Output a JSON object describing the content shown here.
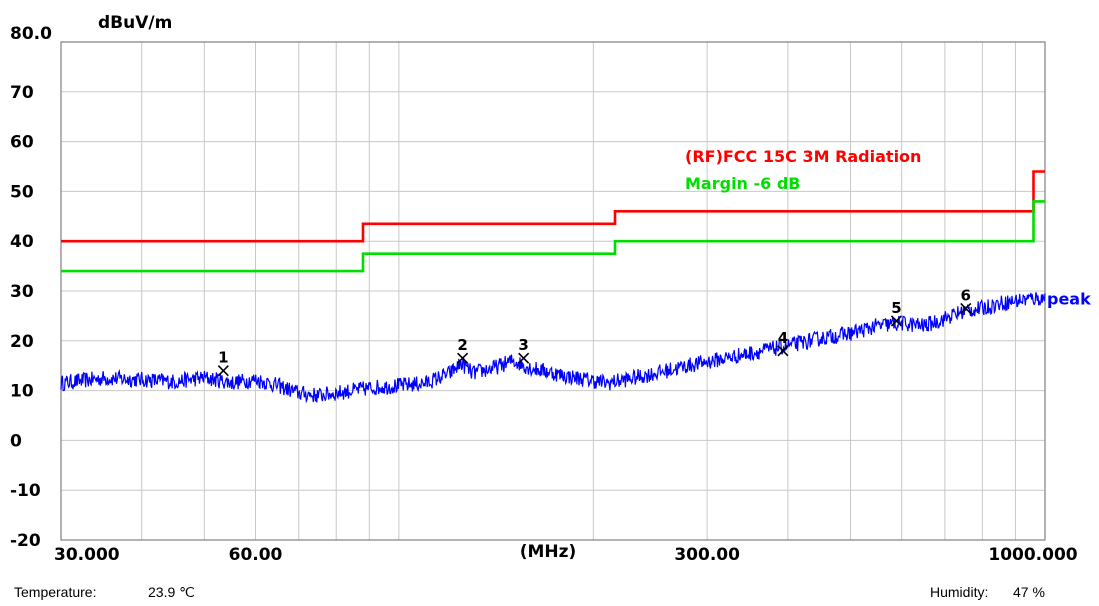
{
  "chart_data": {
    "type": "line",
    "x_scale": "log",
    "x_unit": "(MHz)",
    "y_unit": "dBuV/m",
    "xlim": [
      30,
      1000
    ],
    "ylim": [
      -20,
      80
    ],
    "y_ticks": [
      {
        "value": 80,
        "label": "80.0"
      },
      {
        "value": 70,
        "label": "70"
      },
      {
        "value": 60,
        "label": "60"
      },
      {
        "value": 50,
        "label": "50"
      },
      {
        "value": 40,
        "label": "40"
      },
      {
        "value": 30,
        "label": "30"
      },
      {
        "value": 20,
        "label": "20"
      },
      {
        "value": 10,
        "label": "10"
      },
      {
        "value": 0,
        "label": "0"
      },
      {
        "value": -10,
        "label": "-10"
      },
      {
        "value": -20,
        "label": "-20"
      }
    ],
    "x_tick_labels": [
      {
        "value": 30,
        "label": "30.000"
      },
      {
        "value": 60,
        "label": "60.00"
      },
      {
        "value": 300,
        "label": "300.00"
      },
      {
        "value": 1000,
        "label": "1000.000"
      }
    ],
    "x_grid": [
      40,
      50,
      60,
      70,
      80,
      90,
      100,
      200,
      300,
      400,
      500,
      600,
      700,
      800,
      900
    ],
    "grid": true,
    "series": [
      {
        "name": "(RF)FCC 15C 3M Radiation",
        "color": "#ff0000",
        "step": true,
        "points": [
          [
            30,
            40.0
          ],
          [
            88,
            40.0
          ],
          [
            88,
            43.5
          ],
          [
            216,
            43.5
          ],
          [
            216,
            46.0
          ],
          [
            960,
            46.0
          ],
          [
            960,
            54.0
          ],
          [
            1000,
            54.0
          ]
        ]
      },
      {
        "name": "Margin -6 dB",
        "color": "#00dd00",
        "step": true,
        "points": [
          [
            30,
            34.0
          ],
          [
            88,
            34.0
          ],
          [
            88,
            37.5
          ],
          [
            216,
            37.5
          ],
          [
            216,
            40.0
          ],
          [
            960,
            40.0
          ],
          [
            960,
            48.0
          ],
          [
            1000,
            48.0
          ]
        ]
      },
      {
        "name": "peak",
        "color": "#0000ff",
        "noisy": true,
        "points": [
          [
            30,
            11.5
          ],
          [
            35,
            12.5
          ],
          [
            40,
            12.2
          ],
          [
            45,
            11.8
          ],
          [
            50,
            12.6
          ],
          [
            55,
            11.6
          ],
          [
            60,
            12.2
          ],
          [
            65,
            11.0
          ],
          [
            70,
            9.5
          ],
          [
            75,
            9.0
          ],
          [
            80,
            9.5
          ],
          [
            90,
            10.5
          ],
          [
            100,
            11.0
          ],
          [
            110,
            11.5
          ],
          [
            120,
            13.5
          ],
          [
            125,
            15.5
          ],
          [
            130,
            13.5
          ],
          [
            140,
            14.5
          ],
          [
            150,
            16.0
          ],
          [
            160,
            14.5
          ],
          [
            170,
            13.8
          ],
          [
            180,
            13.0
          ],
          [
            200,
            12.0
          ],
          [
            210,
            11.5
          ],
          [
            230,
            12.5
          ],
          [
            250,
            13.5
          ],
          [
            280,
            15.0
          ],
          [
            320,
            16.5
          ],
          [
            350,
            17.5
          ],
          [
            400,
            19.0
          ],
          [
            450,
            20.5
          ],
          [
            500,
            21.5
          ],
          [
            550,
            23.0
          ],
          [
            600,
            23.5
          ],
          [
            650,
            23.0
          ],
          [
            700,
            24.5
          ],
          [
            750,
            26.0
          ],
          [
            800,
            26.5
          ],
          [
            850,
            27.5
          ],
          [
            900,
            28.0
          ],
          [
            950,
            28.5
          ],
          [
            1000,
            28.5
          ]
        ]
      }
    ],
    "series_end_label": "peak",
    "markers": [
      {
        "label": "1",
        "x": 53.5,
        "y": 14.0
      },
      {
        "label": "2",
        "x": 125.5,
        "y": 16.5
      },
      {
        "label": "3",
        "x": 156.0,
        "y": 16.5
      },
      {
        "label": "4",
        "x": 393.0,
        "y": 18.0
      },
      {
        "label": "5",
        "x": 589.0,
        "y": 24.0
      },
      {
        "label": "6",
        "x": 754.0,
        "y": 26.5
      }
    ],
    "legend": [
      {
        "text": "(RF)FCC 15C 3M Radiation",
        "color": "#ff0000"
      },
      {
        "text": "Margin -6 dB",
        "color": "#00dd00"
      }
    ],
    "legend_position": "upper-right"
  },
  "footer": {
    "temperature_label": "Temperature:",
    "temperature_value": "23.9 ℃",
    "humidity_label": "Humidity:",
    "humidity_value": "47 %"
  }
}
